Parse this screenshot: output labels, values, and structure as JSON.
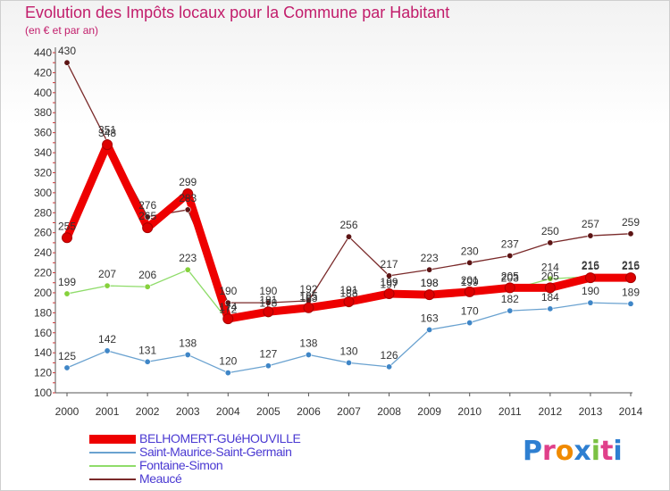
{
  "title": "Evolution des Impôts locaux pour la Commune par Habitant",
  "subtitle": "(en € et par an)",
  "logo": "Proxiti",
  "chart_data": {
    "type": "line",
    "title": "Evolution des Impôts locaux pour la Commune par Habitant",
    "ylabel": "(en € et par an)",
    "xlabel": "",
    "ylim": [
      100,
      440
    ],
    "yticks": [
      100,
      120,
      140,
      160,
      180,
      200,
      220,
      240,
      260,
      280,
      300,
      320,
      340,
      360,
      380,
      400,
      420,
      440
    ],
    "categories": [
      "2000",
      "2001",
      "2002",
      "2003",
      "2004",
      "2005",
      "2006",
      "2007",
      "2008",
      "2009",
      "2010",
      "2011",
      "2012",
      "2013",
      "2014"
    ],
    "legend_position": "bottom-left",
    "grid": false,
    "series": [
      {
        "name": "Meaucé",
        "color": "#7a2a2a",
        "dot": "#5c1414",
        "values": [
          430,
          351,
          276,
          283,
          190,
          190,
          192,
          256,
          217,
          223,
          230,
          237,
          250,
          257,
          259
        ],
        "labels": [
          "430",
          "351",
          "276",
          "283",
          "190",
          "190",
          "192",
          "256",
          "217",
          "223",
          "230",
          "237",
          "250",
          "257",
          "259"
        ]
      },
      {
        "name": "Fontaine-Simon",
        "color": "#8fdc6a",
        "dot": "#86d13c",
        "values": [
          199,
          207,
          206,
          223,
          172,
          178,
          183,
          188,
          197,
          198,
          199,
          203,
          214,
          216,
          216
        ],
        "labels": [
          "199",
          "207",
          "206",
          "223",
          "172",
          "178",
          "183",
          "188",
          "197",
          "198",
          "199",
          "203",
          "214",
          "216",
          "216"
        ]
      },
      {
        "name": "Saint-Maurice-Saint-Germain",
        "color": "#6aa2d0",
        "dot": "#3f86c7",
        "values": [
          125,
          142,
          131,
          138,
          120,
          127,
          138,
          130,
          126,
          163,
          170,
          182,
          184,
          190,
          189
        ],
        "labels": [
          "125",
          "142",
          "131",
          "138",
          "120",
          "127",
          "138",
          "130",
          "126",
          "163",
          "170",
          "182",
          "184",
          "190",
          "189"
        ]
      },
      {
        "name": "BELHOMERT-GUéHOUVILLE",
        "color": "#ee0000",
        "dot": "#dd0000",
        "values": [
          255,
          348,
          265,
          299,
          174,
          181,
          185,
          191,
          199,
          198,
          201,
          205,
          205,
          215,
          215
        ],
        "labels": [
          "255",
          "348",
          "265",
          "299",
          "174",
          "181",
          "185",
          "191",
          "199",
          "198",
          "201",
          "205",
          "205",
          "215",
          "215"
        ]
      }
    ],
    "legend_order": [
      "BELHOMERT-GUéHOUVILLE",
      "Saint-Maurice-Saint-Germain",
      "Fontaine-Simon",
      "Meaucé"
    ]
  }
}
